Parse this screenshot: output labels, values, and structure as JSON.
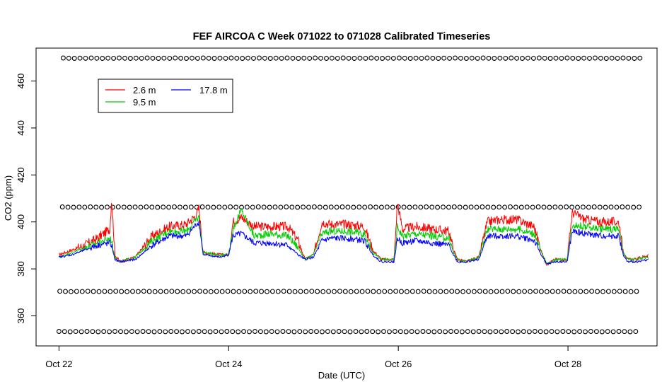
{
  "chart_data": {
    "type": "line",
    "title": "FEF AIRCOA C  Week 071022 to 071028  Calibrated Timeseries",
    "xlabel": "Date (UTC)",
    "ylabel": "CO2 (ppm)",
    "x_ticks": [
      "Oct 22",
      "Oct 24",
      "Oct 26",
      "Oct 28"
    ],
    "x_tick_days": [
      0,
      2,
      4,
      6
    ],
    "y_ticks": [
      360,
      380,
      400,
      420,
      440,
      460
    ],
    "xlim_days": [
      -0.27,
      7.05
    ],
    "ylim": [
      347.2,
      474.0
    ],
    "grid": false,
    "legend_position": "top-left",
    "colors": {
      "2.6 m": "#ff0000",
      "9.5 m": "#00cc00",
      "17.8 m": "#0000ff",
      "calibration": "#000000"
    },
    "series": [
      {
        "name": "2.6 m",
        "x_days": [
          0.0,
          0.15,
          0.3,
          0.45,
          0.6,
          0.62,
          0.66,
          0.72,
          0.9,
          1.1,
          1.3,
          1.5,
          1.62,
          1.65,
          1.7,
          1.9,
          2.0,
          2.05,
          2.15,
          2.3,
          2.5,
          2.7,
          2.82,
          2.9,
          3.0,
          3.1,
          3.2,
          3.4,
          3.6,
          3.7,
          3.8,
          3.95,
          3.99,
          4.05,
          4.2,
          4.4,
          4.6,
          4.65,
          4.7,
          4.8,
          4.95,
          5.05,
          5.2,
          5.4,
          5.6,
          5.7,
          5.75,
          5.85,
          5.99,
          6.05,
          6.2,
          6.4,
          6.6,
          6.65,
          6.7,
          6.8,
          6.95
        ],
        "values": [
          386,
          388,
          390,
          393,
          397,
          410,
          386,
          383,
          385,
          394,
          398,
          399,
          403,
          406,
          387,
          386,
          386,
          400,
          402,
          398,
          398,
          398,
          392,
          384,
          386,
          400,
          399,
          399,
          398,
          388,
          384,
          384,
          408,
          397,
          398,
          397,
          396,
          388,
          384,
          383,
          385,
          400,
          401,
          401,
          398,
          386,
          382,
          384,
          384,
          404,
          401,
          400,
          400,
          388,
          384,
          384,
          386
        ]
      },
      {
        "name": "9.5 m",
        "x_days": [
          0.0,
          0.15,
          0.3,
          0.45,
          0.6,
          0.62,
          0.66,
          0.72,
          0.9,
          1.1,
          1.3,
          1.5,
          1.62,
          1.65,
          1.7,
          1.9,
          2.0,
          2.05,
          2.15,
          2.3,
          2.5,
          2.7,
          2.82,
          2.9,
          3.0,
          3.1,
          3.2,
          3.4,
          3.6,
          3.7,
          3.8,
          3.95,
          3.99,
          4.05,
          4.2,
          4.4,
          4.6,
          4.65,
          4.7,
          4.8,
          4.95,
          5.05,
          5.2,
          5.4,
          5.6,
          5.7,
          5.75,
          5.85,
          5.99,
          6.05,
          6.2,
          6.4,
          6.6,
          6.65,
          6.7,
          6.8,
          6.95
        ],
        "values": [
          385,
          387,
          389,
          391,
          393,
          392,
          385,
          383,
          385,
          392,
          396,
          396,
          401,
          402,
          387,
          386,
          386,
          397,
          405,
          394,
          395,
          394,
          389,
          384,
          386,
          395,
          396,
          396,
          395,
          387,
          384,
          384,
          398,
          394,
          395,
          394,
          393,
          387,
          384,
          383,
          385,
          397,
          397,
          397,
          395,
          386,
          382,
          384,
          384,
          399,
          398,
          397,
          397,
          387,
          384,
          384,
          385
        ]
      },
      {
        "name": "17.8 m",
        "x_days": [
          0.0,
          0.15,
          0.3,
          0.45,
          0.6,
          0.62,
          0.66,
          0.72,
          0.9,
          1.1,
          1.3,
          1.5,
          1.62,
          1.65,
          1.7,
          1.9,
          2.0,
          2.05,
          2.15,
          2.3,
          2.5,
          2.7,
          2.82,
          2.9,
          3.0,
          3.1,
          3.2,
          3.4,
          3.6,
          3.7,
          3.8,
          3.95,
          3.99,
          4.05,
          4.2,
          4.4,
          4.6,
          4.65,
          4.7,
          4.8,
          4.95,
          5.05,
          5.2,
          5.4,
          5.6,
          5.7,
          5.75,
          5.85,
          5.99,
          6.05,
          6.2,
          6.4,
          6.6,
          6.65,
          6.7,
          6.8,
          6.95
        ],
        "values": [
          385,
          386,
          388,
          390,
          391,
          390,
          384,
          383,
          384,
          390,
          394,
          394,
          399,
          400,
          386,
          385,
          386,
          394,
          395,
          391,
          391,
          390,
          386,
          384,
          385,
          392,
          393,
          393,
          392,
          386,
          383,
          383,
          393,
          391,
          392,
          391,
          390,
          386,
          383,
          383,
          384,
          394,
          394,
          394,
          392,
          385,
          382,
          383,
          383,
          396,
          395,
          394,
          394,
          386,
          383,
          383,
          384
        ]
      }
    ],
    "calibration_levels": [
      {
        "value": 469.7,
        "first_day": 0.05,
        "count": 104,
        "spacing_days": 0.066
      },
      {
        "value": 406.3,
        "first_day": 0.04,
        "count": 104,
        "spacing_days": 0.066
      },
      {
        "value": 370.4,
        "first_day": 0.01,
        "count": 104,
        "spacing_days": 0.066
      },
      {
        "value": 353.3,
        "first_day": 0.0,
        "count": 104,
        "spacing_days": 0.066
      }
    ]
  }
}
